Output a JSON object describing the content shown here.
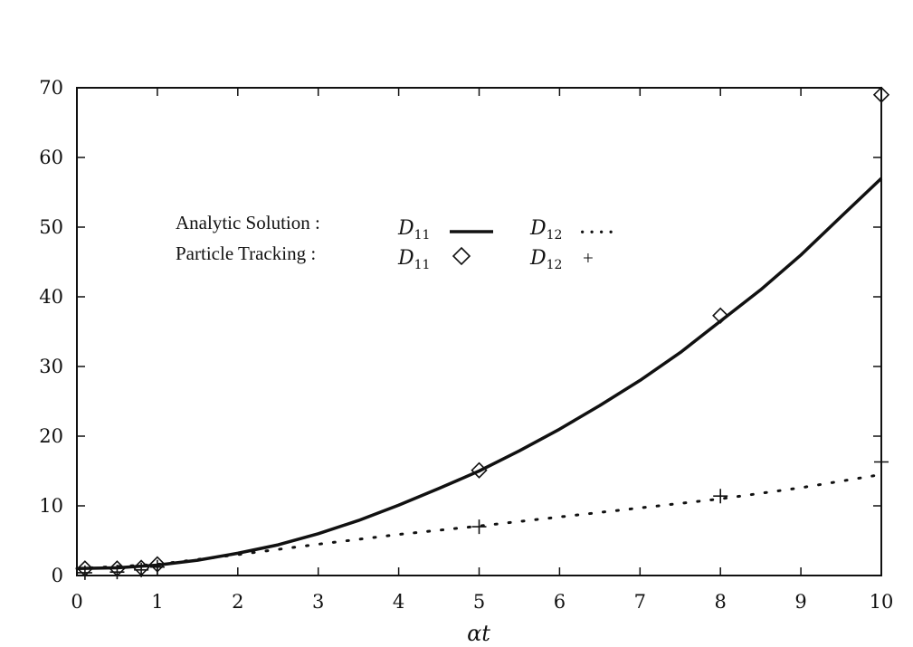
{
  "chart_data": {
    "type": "line",
    "title": "",
    "xlabel": "αt",
    "ylabel": "",
    "xlim": [
      0,
      10
    ],
    "ylim": [
      0,
      70
    ],
    "xticks": [
      0,
      1,
      2,
      3,
      4,
      5,
      6,
      7,
      8,
      9,
      10
    ],
    "yticks": [
      0,
      10,
      20,
      30,
      40,
      50,
      60,
      70
    ],
    "grid": false,
    "legend_position": "upper-left",
    "legend": {
      "row1_label": "Analytic Solution :",
      "row2_label": "Particle  Tracking :",
      "symbol_main": "D",
      "sub_11": "11",
      "sub_12": "12",
      "d12_dots": ". . . .",
      "d12_plus": "+"
    },
    "series": [
      {
        "name": "Analytic Solution D11",
        "style": "solid",
        "x": [
          0,
          0.5,
          1,
          1.5,
          2,
          2.5,
          3,
          3.5,
          4,
          4.5,
          5,
          5.5,
          6,
          6.5,
          7,
          7.5,
          8,
          8.5,
          9,
          9.5,
          10
        ],
        "y": [
          1.0,
          1.1,
          1.5,
          2.2,
          3.2,
          4.4,
          6.0,
          7.9,
          10.1,
          12.5,
          15.0,
          17.9,
          21.0,
          24.4,
          28.0,
          32.0,
          36.5,
          41.0,
          46.0,
          51.5,
          57.0
        ]
      },
      {
        "name": "Analytic Solution D12",
        "style": "dotted",
        "x": [
          0,
          1,
          2,
          3,
          4,
          5,
          6,
          7,
          8,
          9,
          10
        ],
        "y": [
          1.0,
          1.6,
          3.0,
          4.5,
          5.9,
          7.1,
          8.4,
          9.7,
          11.0,
          12.6,
          14.5
        ]
      },
      {
        "name": "Particle Tracking D11",
        "marker": "diamond",
        "x": [
          0.1,
          0.5,
          0.8,
          1,
          5,
          8,
          10
        ],
        "y": [
          1.0,
          1.0,
          1.1,
          1.6,
          15.1,
          37.3,
          69.0
        ]
      },
      {
        "name": "Particle Tracking D12",
        "marker": "plus",
        "x": [
          0.1,
          0.5,
          0.8,
          1,
          5,
          8,
          10
        ],
        "y": [
          0.4,
          0.5,
          0.8,
          1.2,
          7.0,
          11.4,
          16.3
        ]
      }
    ]
  }
}
